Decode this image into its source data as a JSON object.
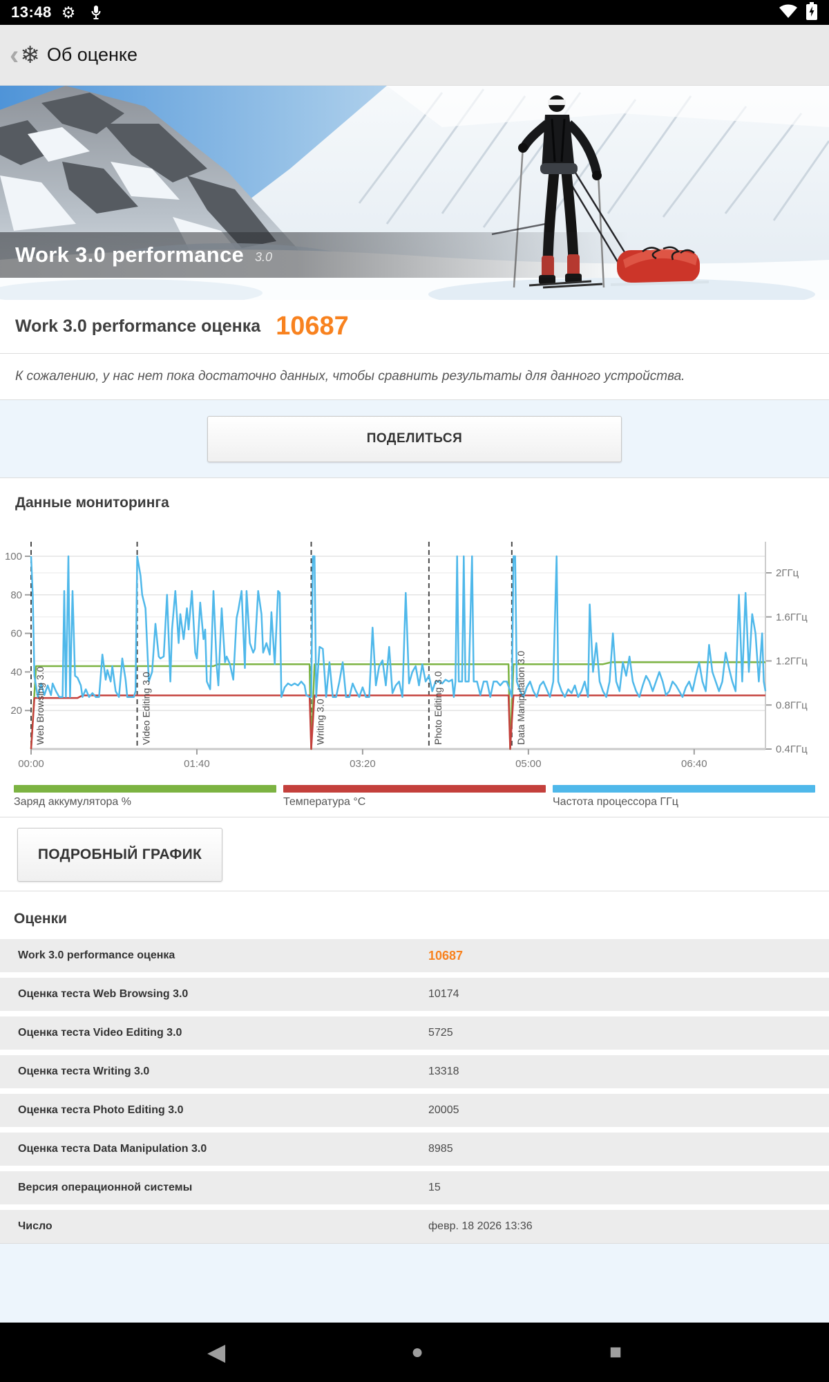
{
  "status_bar": {
    "time": "13:48",
    "gear_icon": "⚙",
    "icons": [
      "settings-icon",
      "mic-icon",
      "wifi-icon",
      "battery-charging-icon"
    ]
  },
  "app_bar": {
    "back_glyph": "‹",
    "logo_glyph": "❄",
    "title": "Об оценке"
  },
  "hero": {
    "title": "Work 3.0 performance",
    "version": "3.0"
  },
  "score": {
    "label": "Work 3.0 performance оценка",
    "value": "10687",
    "accent_color": "#f8821f"
  },
  "note": "К сожалению, у нас нет пока достаточно данных, чтобы сравнить результаты для данного устройства.",
  "share_button": "ПОДЕЛИТЬСЯ",
  "monitoring": {
    "title": "Данные мониторинга",
    "detail_button": "ПОДРОБНЫЙ ГРАФИК",
    "legend": [
      {
        "label": "Заряд аккумулятора %",
        "color": "#7cb342"
      },
      {
        "label": "Температура °C",
        "color": "#c4403c"
      },
      {
        "label": "Частота процессора ГГц",
        "color": "#4fb8ea"
      }
    ]
  },
  "chart_data": {
    "type": "line",
    "title": "Данные мониторинга",
    "x_ticks": [
      "00:00",
      "01:40",
      "03:20",
      "05:00",
      "06:40"
    ],
    "x_tick_seconds": [
      0,
      100,
      200,
      300,
      400
    ],
    "x_range_seconds": [
      0,
      443
    ],
    "left_axis": {
      "ticks": [
        20,
        40,
        60,
        80,
        100
      ],
      "range": [
        0,
        107
      ]
    },
    "right_axis": {
      "ticks": [
        "0.4ГГц",
        "0.8ГГц",
        "1.2ГГц",
        "1.6ГГц",
        "2ГГц"
      ],
      "tick_values_ghz": [
        0.4,
        0.8,
        1.2,
        1.6,
        2.0
      ]
    },
    "grid": true,
    "legend_position": "bottom",
    "sections": [
      {
        "label": "Web Browsing 3.0",
        "t": 0
      },
      {
        "label": "Video Editing 3.0",
        "t": 64
      },
      {
        "label": "Writing 3.0",
        "t": 169
      },
      {
        "label": "Photo Editing 3.0",
        "t": 240
      },
      {
        "label": "Data Manipulation 3.0",
        "t": 290
      }
    ],
    "series": [
      {
        "name": "Заряд аккумулятора %",
        "color": "#7cb342",
        "points": [
          [
            0,
            0
          ],
          [
            3,
            43
          ],
          [
            110,
            43
          ],
          [
            113,
            44
          ],
          [
            168,
            44
          ],
          [
            169,
            0
          ],
          [
            171,
            44
          ],
          [
            288,
            44
          ],
          [
            289,
            0
          ],
          [
            291,
            44
          ],
          [
            345,
            44
          ],
          [
            350,
            45
          ],
          [
            443,
            45
          ]
        ]
      },
      {
        "name": "Температура °C",
        "color": "#c4403c",
        "points": [
          [
            0,
            0
          ],
          [
            2,
            26.5
          ],
          [
            28,
            26.5
          ],
          [
            31,
            27.8
          ],
          [
            168,
            27.8
          ],
          [
            169,
            0
          ],
          [
            171,
            27.8
          ],
          [
            288,
            27.8
          ],
          [
            289,
            0
          ],
          [
            291,
            27.8
          ],
          [
            443,
            27.8
          ]
        ]
      },
      {
        "name": "Частота процессора ГГц",
        "color": "#4fb8ea",
        "points": [
          [
            0,
            100
          ],
          [
            1,
            80
          ],
          [
            2,
            38
          ],
          [
            4,
            27
          ],
          [
            6,
            34
          ],
          [
            8,
            28
          ],
          [
            10,
            33
          ],
          [
            12,
            28
          ],
          [
            13,
            34
          ],
          [
            15,
            30
          ],
          [
            17,
            27
          ],
          [
            19,
            27
          ],
          [
            20,
            82
          ],
          [
            21,
            27
          ],
          [
            22.5,
            100
          ],
          [
            23.5,
            27
          ],
          [
            25,
            82
          ],
          [
            26.5,
            38
          ],
          [
            28,
            37
          ],
          [
            30,
            33
          ],
          [
            31,
            27
          ],
          [
            33,
            31
          ],
          [
            35,
            27
          ],
          [
            37,
            29
          ],
          [
            39,
            27
          ],
          [
            41,
            27
          ],
          [
            43,
            49
          ],
          [
            45,
            36
          ],
          [
            46,
            41
          ],
          [
            48,
            35
          ],
          [
            49,
            43
          ],
          [
            51,
            30
          ],
          [
            53,
            27
          ],
          [
            55,
            47
          ],
          [
            57,
            36
          ],
          [
            58,
            27
          ],
          [
            60,
            27
          ],
          [
            62,
            27
          ],
          [
            63,
            30
          ],
          [
            64,
            100
          ],
          [
            66,
            90
          ],
          [
            67,
            80
          ],
          [
            69,
            73
          ],
          [
            71,
            35
          ],
          [
            73,
            40
          ],
          [
            75,
            65
          ],
          [
            77,
            48
          ],
          [
            78,
            47
          ],
          [
            80,
            48
          ],
          [
            82,
            80
          ],
          [
            84,
            35
          ],
          [
            85,
            62
          ],
          [
            87,
            82
          ],
          [
            89,
            55
          ],
          [
            90,
            70
          ],
          [
            92,
            57
          ],
          [
            94,
            73
          ],
          [
            95,
            62
          ],
          [
            97,
            82
          ],
          [
            99,
            50
          ],
          [
            100,
            47
          ],
          [
            102,
            76
          ],
          [
            104,
            57
          ],
          [
            105,
            62
          ],
          [
            106,
            35
          ],
          [
            108,
            31
          ],
          [
            110,
            82
          ],
          [
            112,
            43
          ],
          [
            113,
            33
          ],
          [
            115,
            73
          ],
          [
            117,
            45
          ],
          [
            118,
            48
          ],
          [
            120,
            44
          ],
          [
            122,
            36
          ],
          [
            124,
            68
          ],
          [
            125,
            72
          ],
          [
            127,
            82
          ],
          [
            129,
            42
          ],
          [
            130,
            82
          ],
          [
            132,
            55
          ],
          [
            134,
            50
          ],
          [
            135,
            52
          ],
          [
            137,
            82
          ],
          [
            139,
            70
          ],
          [
            140,
            50
          ],
          [
            142,
            55
          ],
          [
            144,
            49
          ],
          [
            145,
            71
          ],
          [
            147,
            44
          ],
          [
            149,
            82
          ],
          [
            150,
            81
          ],
          [
            151,
            27
          ],
          [
            153,
            32
          ],
          [
            155,
            34
          ],
          [
            157,
            33
          ],
          [
            159,
            34
          ],
          [
            161,
            33
          ],
          [
            163,
            35
          ],
          [
            165,
            33
          ],
          [
            166,
            28
          ],
          [
            168,
            27
          ],
          [
            169,
            27
          ],
          [
            170,
            100
          ],
          [
            171,
            100
          ],
          [
            172,
            27
          ],
          [
            174,
            53
          ],
          [
            176,
            52
          ],
          [
            178,
            27
          ],
          [
            180,
            45
          ],
          [
            182,
            27
          ],
          [
            184,
            27
          ],
          [
            186,
            35
          ],
          [
            188,
            45
          ],
          [
            190,
            27
          ],
          [
            192,
            27
          ],
          [
            194,
            34
          ],
          [
            196,
            30
          ],
          [
            198,
            27
          ],
          [
            200,
            32
          ],
          [
            202,
            27
          ],
          [
            204,
            27
          ],
          [
            206,
            63
          ],
          [
            208,
            33
          ],
          [
            210,
            43
          ],
          [
            212,
            46
          ],
          [
            214,
            33
          ],
          [
            216,
            53
          ],
          [
            218,
            29
          ],
          [
            220,
            33
          ],
          [
            222,
            35
          ],
          [
            224,
            27
          ],
          [
            226,
            81
          ],
          [
            228,
            34
          ],
          [
            230,
            40
          ],
          [
            232,
            43
          ],
          [
            234,
            33
          ],
          [
            236,
            44
          ],
          [
            238,
            35
          ],
          [
            240,
            38
          ],
          [
            242,
            30
          ],
          [
            244,
            35
          ],
          [
            246,
            35
          ],
          [
            248,
            34
          ],
          [
            250,
            36
          ],
          [
            252,
            35
          ],
          [
            254,
            36
          ],
          [
            255,
            27
          ],
          [
            256,
            35
          ],
          [
            257,
            100
          ],
          [
            258,
            35
          ],
          [
            260,
            35
          ],
          [
            261,
            100
          ],
          [
            262,
            35
          ],
          [
            264,
            35
          ],
          [
            266,
            100
          ],
          [
            267,
            35
          ],
          [
            269,
            35
          ],
          [
            271,
            28
          ],
          [
            273,
            35
          ],
          [
            275,
            35
          ],
          [
            277,
            27
          ],
          [
            279,
            35
          ],
          [
            281,
            35
          ],
          [
            283,
            33
          ],
          [
            285,
            35
          ],
          [
            287,
            35
          ],
          [
            289,
            30
          ],
          [
            290,
            27
          ],
          [
            291,
            100
          ],
          [
            292,
            100
          ],
          [
            293,
            35
          ],
          [
            295,
            30
          ],
          [
            297,
            27
          ],
          [
            299,
            32
          ],
          [
            301,
            35
          ],
          [
            303,
            30
          ],
          [
            305,
            27
          ],
          [
            307,
            33
          ],
          [
            309,
            35
          ],
          [
            311,
            31
          ],
          [
            313,
            27
          ],
          [
            315,
            35
          ],
          [
            317,
            100
          ],
          [
            318,
            35
          ],
          [
            320,
            30
          ],
          [
            322,
            27
          ],
          [
            324,
            31
          ],
          [
            326,
            29
          ],
          [
            328,
            33
          ],
          [
            330,
            27
          ],
          [
            332,
            30
          ],
          [
            334,
            35
          ],
          [
            336,
            27
          ],
          [
            337,
            75
          ],
          [
            339,
            40
          ],
          [
            341,
            55
          ],
          [
            343,
            35
          ],
          [
            345,
            30
          ],
          [
            347,
            27
          ],
          [
            349,
            35
          ],
          [
            351,
            60
          ],
          [
            353,
            35
          ],
          [
            355,
            30
          ],
          [
            357,
            45
          ],
          [
            359,
            38
          ],
          [
            361,
            48
          ],
          [
            363,
            35
          ],
          [
            365,
            30
          ],
          [
            367,
            27
          ],
          [
            369,
            33
          ],
          [
            371,
            38
          ],
          [
            373,
            35
          ],
          [
            375,
            30
          ],
          [
            377,
            35
          ],
          [
            379,
            40
          ],
          [
            381,
            35
          ],
          [
            383,
            28
          ],
          [
            385,
            30
          ],
          [
            387,
            35
          ],
          [
            389,
            33
          ],
          [
            391,
            30
          ],
          [
            393,
            27
          ],
          [
            395,
            32
          ],
          [
            397,
            35
          ],
          [
            399,
            30
          ],
          [
            401,
            38
          ],
          [
            403,
            45
          ],
          [
            405,
            35
          ],
          [
            407,
            30
          ],
          [
            409,
            54
          ],
          [
            411,
            40
          ],
          [
            413,
            35
          ],
          [
            415,
            30
          ],
          [
            417,
            35
          ],
          [
            419,
            50
          ],
          [
            421,
            42
          ],
          [
            423,
            35
          ],
          [
            425,
            30
          ],
          [
            427,
            80
          ],
          [
            429,
            35
          ],
          [
            431,
            81
          ],
          [
            433,
            40
          ],
          [
            435,
            70
          ],
          [
            437,
            60
          ],
          [
            439,
            35
          ],
          [
            441,
            60
          ],
          [
            442,
            35
          ],
          [
            443,
            30
          ]
        ]
      }
    ]
  },
  "scores": {
    "title": "Оценки",
    "rows": [
      {
        "label": "Work 3.0 performance оценка",
        "value": "10687",
        "highlight": true
      },
      {
        "label": "Оценка теста Web Browsing 3.0",
        "value": "10174",
        "highlight": false
      },
      {
        "label": "Оценка теста Video Editing 3.0",
        "value": "5725",
        "highlight": false
      },
      {
        "label": "Оценка теста Writing 3.0",
        "value": "13318",
        "highlight": false
      },
      {
        "label": "Оценка теста Photo Editing 3.0",
        "value": "20005",
        "highlight": false
      },
      {
        "label": "Оценка теста Data Manipulation 3.0",
        "value": "8985",
        "highlight": false
      },
      {
        "label": "Версия операционной системы",
        "value": "15",
        "highlight": false
      },
      {
        "label": "Число",
        "value": "февр. 18 2026 13:36",
        "highlight": false
      }
    ]
  },
  "nav_bar": {
    "back_glyph": "◀",
    "home_glyph": "●",
    "recents_glyph": "■"
  }
}
